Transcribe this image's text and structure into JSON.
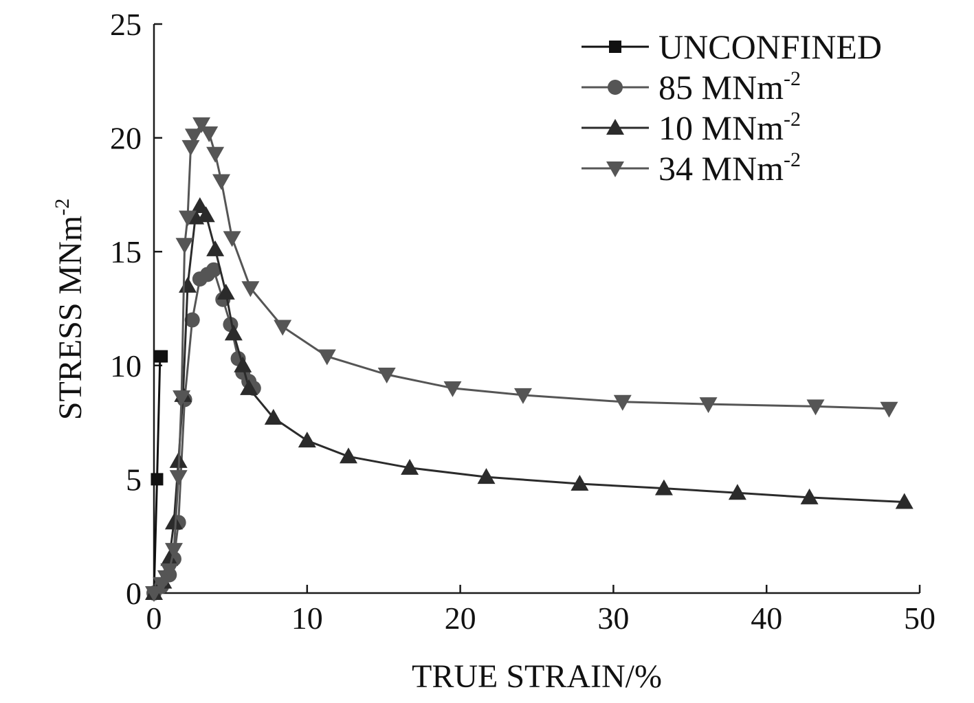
{
  "chart_data": {
    "type": "line",
    "title": "",
    "xlabel": "TRUE STRAIN/%",
    "ylabel_main": "STRESS MNm",
    "ylabel_sup": "-2",
    "xlim": [
      0,
      50
    ],
    "ylim": [
      0,
      25
    ],
    "xticks": [
      0,
      10,
      20,
      30,
      40,
      50
    ],
    "yticks": [
      0,
      5,
      10,
      15,
      20,
      25
    ],
    "grid": false,
    "legend_position": "top-right",
    "series": [
      {
        "name": "UNCONFINED",
        "name_sup": "",
        "marker": "square",
        "color": "#111111",
        "points": [
          [
            0,
            0
          ],
          [
            0.2,
            5
          ],
          [
            0.4,
            10.4
          ],
          [
            0.5,
            10.4
          ]
        ]
      },
      {
        "name": "85 MNm",
        "name_sup": "-2",
        "marker": "circle",
        "color": "#555555",
        "points": [
          [
            0,
            0
          ],
          [
            0.5,
            0.3
          ],
          [
            1.0,
            0.8
          ],
          [
            1.3,
            1.5
          ],
          [
            1.6,
            3.1
          ],
          [
            2.0,
            8.5
          ],
          [
            2.5,
            12.0
          ],
          [
            3.0,
            13.8
          ],
          [
            3.5,
            14.0
          ],
          [
            3.9,
            14.2
          ],
          [
            4.5,
            12.9
          ],
          [
            5.0,
            11.8
          ],
          [
            5.5,
            10.3
          ],
          [
            5.8,
            9.7
          ],
          [
            6.2,
            9.3
          ],
          [
            6.5,
            9.0
          ]
        ]
      },
      {
        "name": "10 MNm",
        "name_sup": "-2",
        "marker": "triangle-up",
        "color": "#2b2b2b",
        "points": [
          [
            0,
            0
          ],
          [
            0.6,
            0.5
          ],
          [
            1.0,
            1.5
          ],
          [
            1.3,
            3.1
          ],
          [
            1.6,
            5.8
          ],
          [
            1.9,
            8.7
          ],
          [
            2.2,
            13.5
          ],
          [
            2.7,
            16.5
          ],
          [
            3.0,
            17.0
          ],
          [
            3.4,
            16.6
          ],
          [
            4.0,
            15.1
          ],
          [
            4.7,
            13.2
          ],
          [
            5.2,
            11.4
          ],
          [
            5.8,
            10.0
          ],
          [
            6.2,
            9.0
          ],
          [
            7.8,
            7.7
          ],
          [
            10.0,
            6.7
          ],
          [
            12.7,
            6.0
          ],
          [
            16.7,
            5.5
          ],
          [
            21.7,
            5.1
          ],
          [
            27.8,
            4.8
          ],
          [
            33.3,
            4.6
          ],
          [
            38.1,
            4.4
          ],
          [
            42.8,
            4.2
          ],
          [
            49.0,
            4.0
          ]
        ]
      },
      {
        "name": "34 MNm",
        "name_sup": "-2",
        "marker": "triangle-down",
        "color": "#555555",
        "points": [
          [
            0,
            0
          ],
          [
            0.5,
            0.4
          ],
          [
            0.8,
            0.7
          ],
          [
            1.0,
            1.0
          ],
          [
            1.3,
            1.9
          ],
          [
            1.6,
            5.1
          ],
          [
            1.8,
            8.6
          ],
          [
            2.0,
            15.3
          ],
          [
            2.2,
            16.5
          ],
          [
            2.4,
            19.6
          ],
          [
            2.6,
            20.1
          ],
          [
            3.1,
            20.6
          ],
          [
            3.6,
            20.2
          ],
          [
            4.0,
            19.3
          ],
          [
            4.4,
            18.1
          ],
          [
            5.1,
            15.6
          ],
          [
            6.3,
            13.4
          ],
          [
            8.4,
            11.7
          ],
          [
            11.3,
            10.4
          ],
          [
            15.2,
            9.6
          ],
          [
            19.5,
            9.0
          ],
          [
            24.1,
            8.7
          ],
          [
            30.6,
            8.4
          ],
          [
            36.2,
            8.3
          ],
          [
            43.2,
            8.2
          ],
          [
            48.0,
            8.1
          ]
        ]
      }
    ]
  }
}
